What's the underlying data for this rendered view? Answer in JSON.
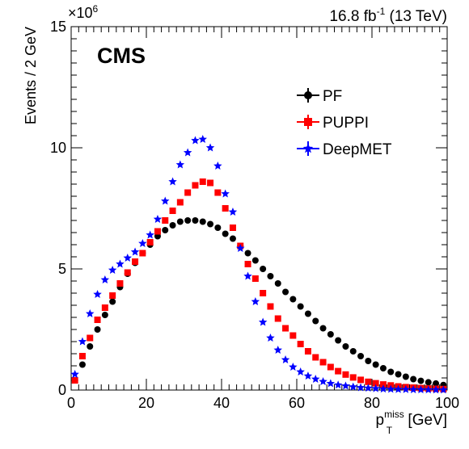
{
  "chart_data": {
    "type": "scatter",
    "experiment_label": "CMS",
    "lumi_label": {
      "main": "16.8 fb",
      "sup": "-1",
      "tail": " (13 TeV)"
    },
    "xlabel": {
      "main": "p",
      "sup": "miss",
      "sub": "T",
      "unit": " [GeV]"
    },
    "ylabel": "Events / 2 GeV",
    "y_multiplier": {
      "base": "×10",
      "exp": "6"
    },
    "xlim": [
      0,
      100
    ],
    "ylim": [
      0,
      15000000
    ],
    "xticks": [
      "0",
      "20",
      "40",
      "60",
      "80",
      "100"
    ],
    "yticks": [
      "0",
      "5",
      "10",
      "15"
    ],
    "legend_position": "top-right",
    "x": [
      1,
      3,
      5,
      7,
      9,
      11,
      13,
      15,
      17,
      19,
      21,
      23,
      25,
      27,
      29,
      31,
      33,
      35,
      37,
      39,
      41,
      43,
      45,
      47,
      49,
      51,
      53,
      55,
      57,
      59,
      61,
      63,
      65,
      67,
      69,
      71,
      73,
      75,
      77,
      79,
      81,
      83,
      85,
      87,
      89,
      91,
      93,
      95,
      97,
      99
    ],
    "series": [
      {
        "name": "PF",
        "color": "#000000",
        "marker": "circle",
        "values": [
          400000,
          1050000,
          1800000,
          2500000,
          3100000,
          3650000,
          4250000,
          4800000,
          5250000,
          5650000,
          6000000,
          6350000,
          6600000,
          6800000,
          6950000,
          7000000,
          7000000,
          6950000,
          6850000,
          6700000,
          6450000,
          6250000,
          5950000,
          5650000,
          5350000,
          5000000,
          4700000,
          4400000,
          4050000,
          3750000,
          3450000,
          3150000,
          2850000,
          2550000,
          2300000,
          2050000,
          1800000,
          1600000,
          1400000,
          1200000,
          1050000,
          900000,
          750000,
          650000,
          550000,
          450000,
          380000,
          320000,
          270000,
          210000
        ]
      },
      {
        "name": "PUPPI",
        "color": "#ff0000",
        "marker": "square",
        "values": [
          400000,
          1400000,
          2150000,
          2900000,
          3400000,
          3900000,
          4400000,
          4850000,
          5300000,
          5650000,
          6100000,
          6550000,
          7000000,
          7400000,
          7750000,
          8150000,
          8450000,
          8600000,
          8550000,
          8150000,
          7500000,
          6700000,
          5950000,
          5200000,
          4600000,
          4000000,
          3450000,
          2950000,
          2550000,
          2250000,
          1900000,
          1600000,
          1350000,
          1150000,
          950000,
          780000,
          640000,
          520000,
          420000,
          340000,
          280000,
          230000,
          190000,
          150000,
          120000,
          100000,
          80000,
          65000,
          52000,
          40000
        ]
      },
      {
        "name": "DeepMET",
        "color": "#0000ff",
        "marker": "star",
        "values": [
          650000,
          2000000,
          3150000,
          3950000,
          4550000,
          4950000,
          5200000,
          5450000,
          5700000,
          6050000,
          6400000,
          7050000,
          7800000,
          8600000,
          9300000,
          9800000,
          10300000,
          10350000,
          10000000,
          9250000,
          8100000,
          7350000,
          5850000,
          4700000,
          3650000,
          2800000,
          2150000,
          1650000,
          1250000,
          950000,
          750000,
          580000,
          450000,
          350000,
          270000,
          210000,
          170000,
          130000,
          100000,
          80000,
          60000,
          45000,
          35000,
          28000,
          22000,
          17000,
          13000,
          10000,
          8000,
          6000
        ]
      }
    ]
  }
}
